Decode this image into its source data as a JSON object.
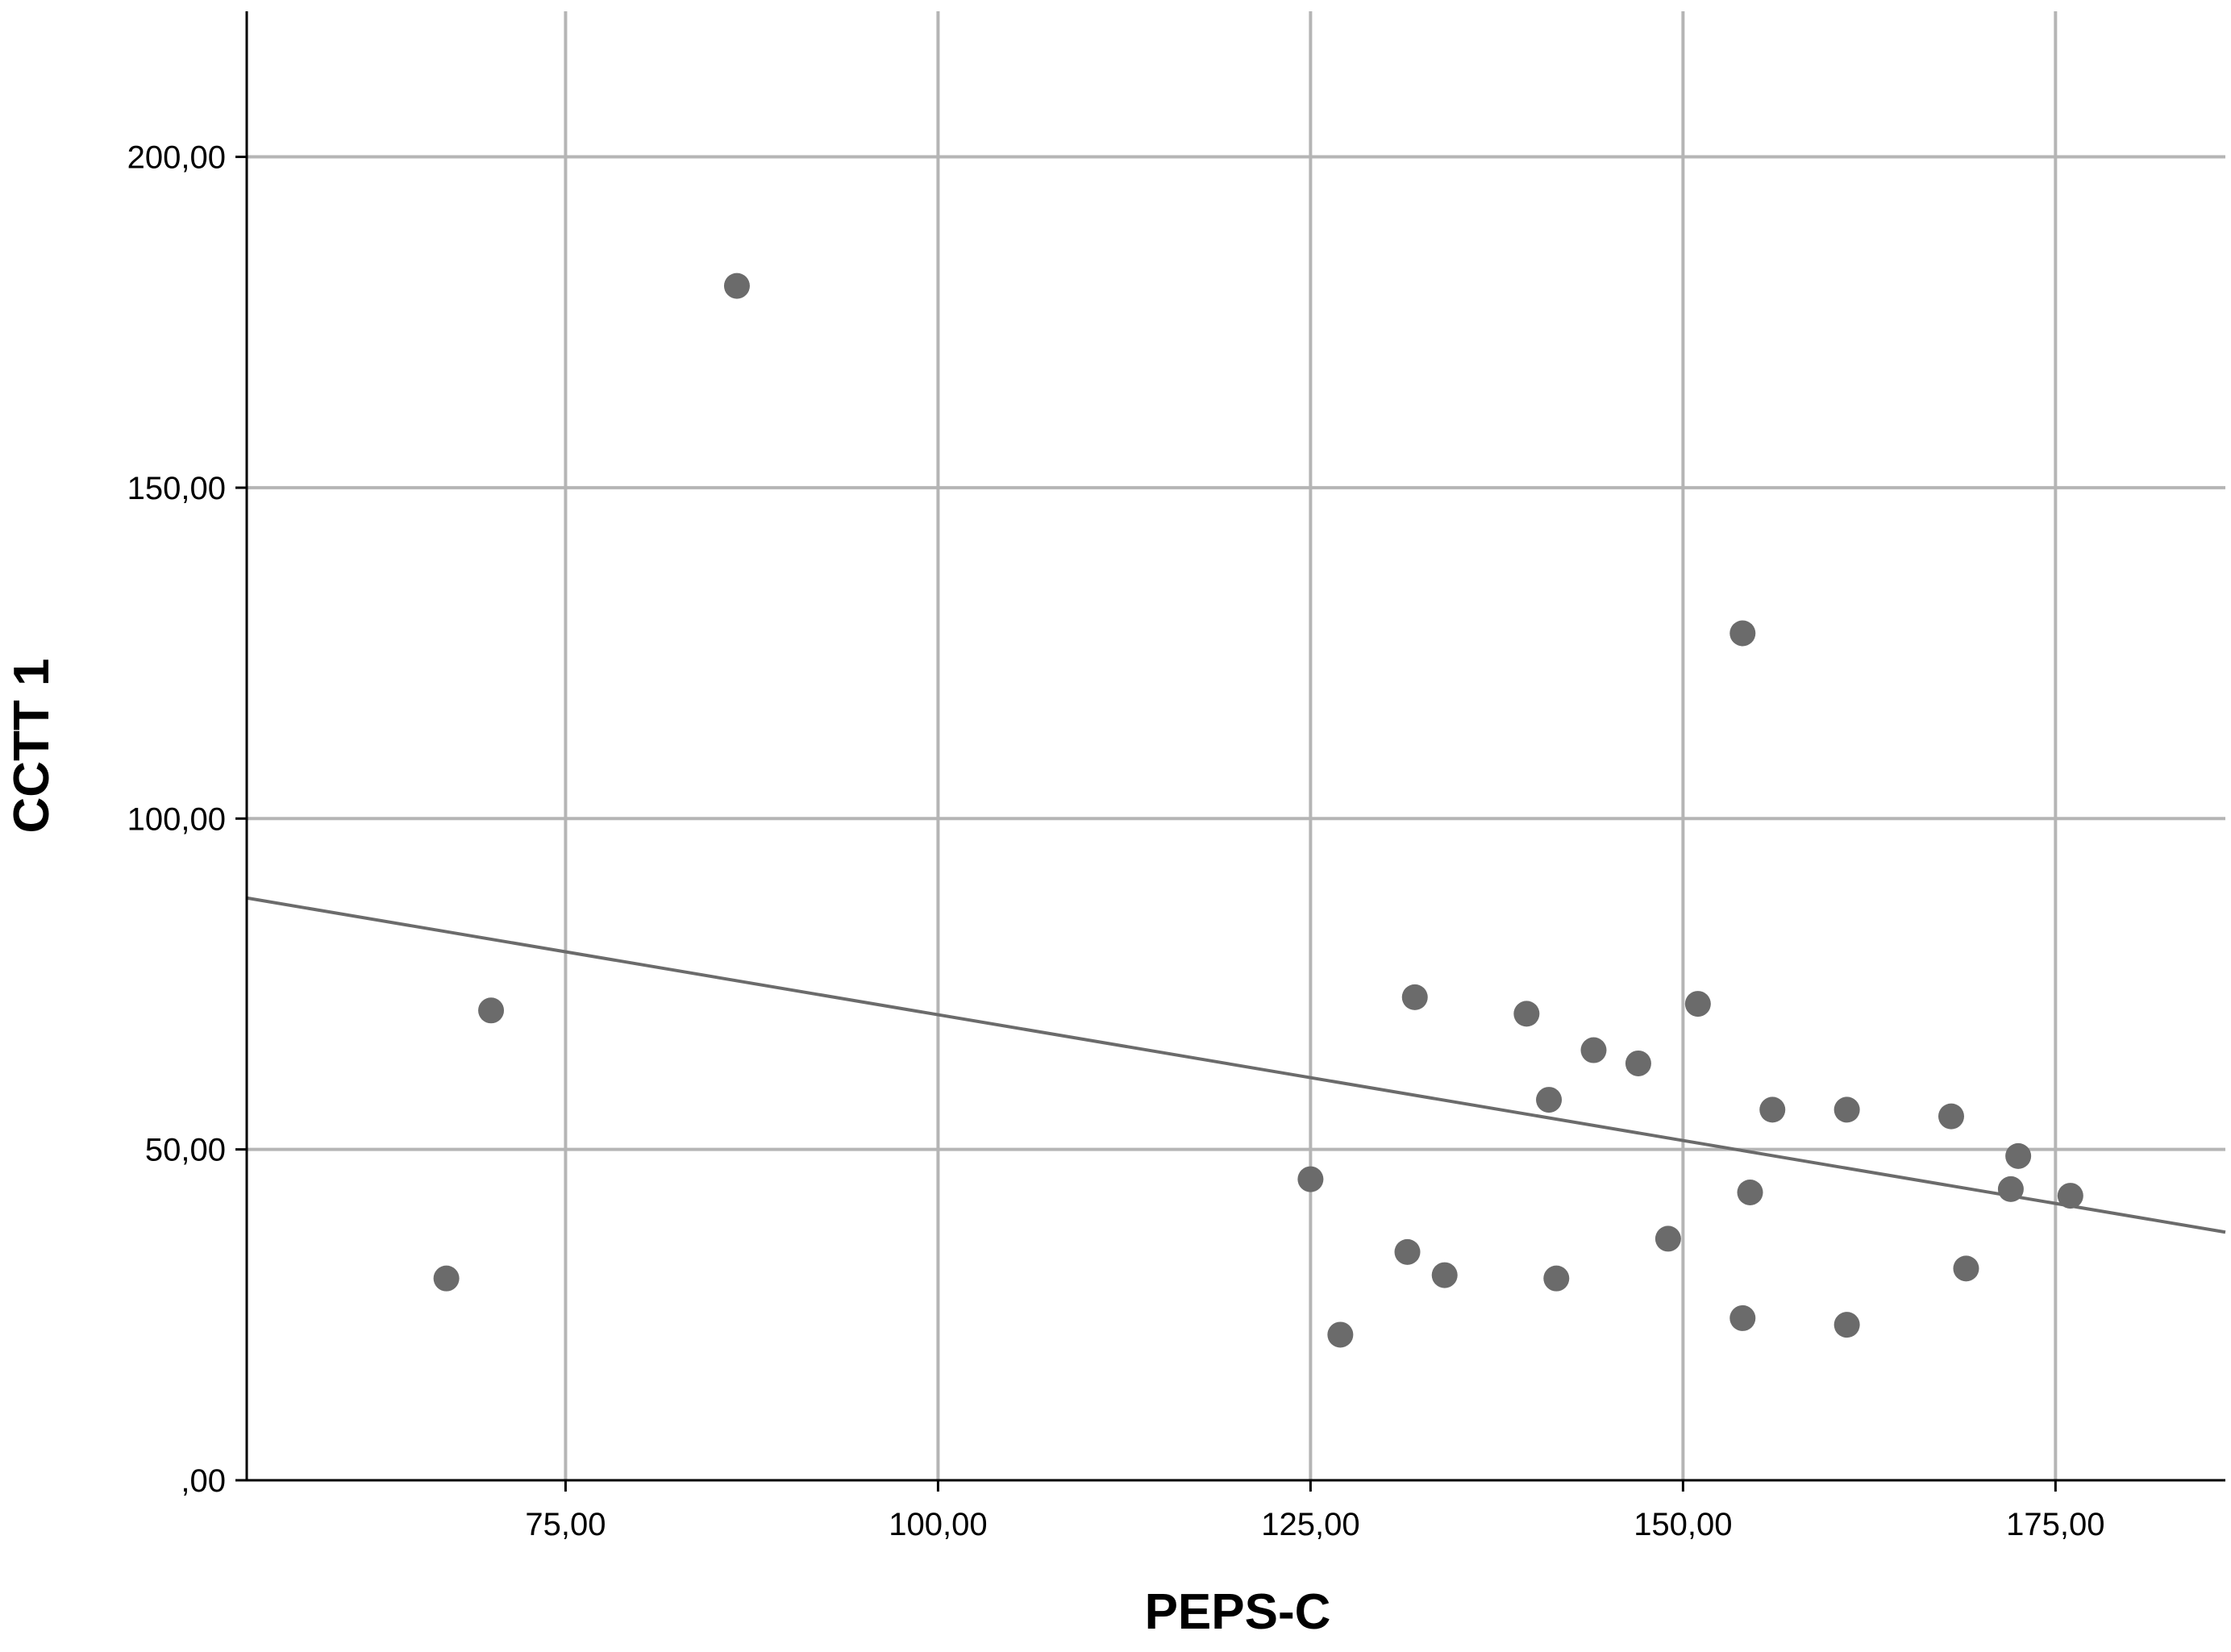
{
  "chart_data": {
    "type": "scatter",
    "xlabel": "PEPS-C",
    "ylabel": "CCTT 1",
    "xlim": [
      53.6,
      186.4
    ],
    "ylim": [
      0,
      222
    ],
    "x_ticks": [
      75,
      100,
      125,
      150,
      175
    ],
    "x_tick_labels": [
      "75,00",
      "100,00",
      "125,00",
      "150,00",
      "175,00"
    ],
    "y_ticks": [
      0,
      50,
      100,
      150,
      200
    ],
    "y_tick_labels": [
      ",00",
      "50,00",
      "100,00",
      "150,00",
      "200,00"
    ],
    "grid": true,
    "points": [
      {
        "x": 67,
        "y": 30.5
      },
      {
        "x": 70,
        "y": 71
      },
      {
        "x": 86.5,
        "y": 180.5
      },
      {
        "x": 125,
        "y": 45.5
      },
      {
        "x": 127,
        "y": 22
      },
      {
        "x": 131.5,
        "y": 34.5
      },
      {
        "x": 132,
        "y": 73
      },
      {
        "x": 134,
        "y": 31
      },
      {
        "x": 139.5,
        "y": 70.5
      },
      {
        "x": 141,
        "y": 57.5
      },
      {
        "x": 141.5,
        "y": 30.5
      },
      {
        "x": 144,
        "y": 65
      },
      {
        "x": 147,
        "y": 63
      },
      {
        "x": 149,
        "y": 36.5
      },
      {
        "x": 151,
        "y": 72
      },
      {
        "x": 154,
        "y": 128
      },
      {
        "x": 154,
        "y": 24.5
      },
      {
        "x": 154.5,
        "y": 43.5
      },
      {
        "x": 156,
        "y": 56
      },
      {
        "x": 161,
        "y": 56
      },
      {
        "x": 161,
        "y": 23.5
      },
      {
        "x": 168,
        "y": 55
      },
      {
        "x": 169,
        "y": 32
      },
      {
        "x": 172,
        "y": 44
      },
      {
        "x": 172.5,
        "y": 49
      },
      {
        "x": 176,
        "y": 43
      }
    ],
    "fit_line": {
      "x1": 53.6,
      "y1": 88,
      "x2": 186.4,
      "y2": 37.5
    },
    "colors": {
      "point": "#6b6b6b",
      "line": "#6b6b6b",
      "grid": "#b5b5b5",
      "axis": "#000000"
    }
  }
}
